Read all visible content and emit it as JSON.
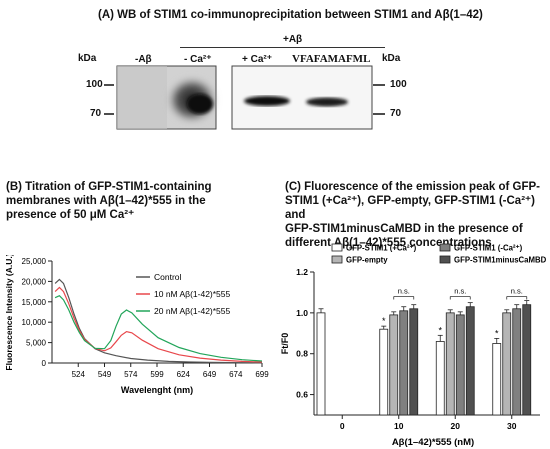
{
  "panelA": {
    "title": "(A) WB of STIM1 co-immunoprecipitation  between STIM1 and Aβ(1–42)",
    "kda_left": "kDa",
    "kda_right": "kDa",
    "minus_ab": "-Aβ",
    "plus_ab": "+Aβ",
    "minus_ca": "- Ca²⁺",
    "plus_ca": "+ Ca²⁺",
    "peptide": "VFAFAMAFML",
    "marker_100": "100",
    "marker_70": "70"
  },
  "panelB": {
    "title_line1": "(B) Titration of GFP-STIM1-containing",
    "title_line2": "membranes with Aβ(1–42)*555 in the",
    "title_line3": "presence of 50 μM Ca²⁺",
    "chart_data": {
      "type": "line",
      "xlabel": "Wavelenght (nm)",
      "ylabel": "Fluorescence Intensity (A.U.)",
      "xlim": [
        499,
        699
      ],
      "ylim": [
        0,
        25000
      ],
      "x_ticks": [
        524,
        549,
        574,
        599,
        624,
        649,
        674,
        699
      ],
      "y_ticks": [
        0,
        5000,
        10000,
        15000,
        20000,
        25000
      ],
      "y_tick_labels": [
        "0",
        "5,000",
        "10,000",
        "15,000",
        "20,000",
        "25,000"
      ],
      "legend": "top-right",
      "series": [
        {
          "name": "Control",
          "color": "#555555",
          "x": [
            502,
            506,
            510,
            515,
            520,
            525,
            530,
            540,
            549,
            560,
            574,
            590,
            610,
            630,
            650,
            670,
            690,
            699
          ],
          "y": [
            19500,
            20500,
            19500,
            16000,
            12000,
            8500,
            6000,
            3500,
            2500,
            1800,
            1100,
            700,
            400,
            250,
            150,
            100,
            80,
            60
          ]
        },
        {
          "name": "10 nM Aβ(1-42)*555",
          "color": "#e8474b",
          "x": [
            502,
            506,
            510,
            515,
            520,
            525,
            530,
            540,
            549,
            555,
            560,
            565,
            570,
            575,
            585,
            600,
            620,
            640,
            660,
            680,
            699
          ],
          "y": [
            17500,
            18500,
            17500,
            14500,
            11000,
            8000,
            5800,
            3600,
            3000,
            3700,
            5200,
            6800,
            7700,
            7400,
            5600,
            3500,
            2000,
            1200,
            700,
            400,
            250
          ]
        },
        {
          "name": "20 nM Aβ(1-42)*555",
          "color": "#22a55a",
          "x": [
            502,
            506,
            510,
            515,
            520,
            525,
            530,
            540,
            549,
            555,
            560,
            565,
            570,
            575,
            585,
            600,
            620,
            640,
            660,
            680,
            699
          ],
          "y": [
            16000,
            16500,
            15500,
            13000,
            10000,
            7500,
            5500,
            3600,
            3500,
            5500,
            9000,
            12000,
            13000,
            12300,
            9500,
            6200,
            3800,
            2300,
            1400,
            800,
            500
          ]
        }
      ]
    }
  },
  "panelC": {
    "title_line1": "(C) Fluorescence of the emission peak of GFP-",
    "title_line2": "STIM1 (+Ca²⁺), GFP-empty, GFP-STIM1 (-Ca²⁺) and",
    "title_line3": "GFP-STIM1minusCaMBD  in  the  presence  of",
    "title_line4": "different Aβ(1–42)*555 concentrations",
    "chart_data": {
      "type": "bar",
      "xlabel": "Aβ(1–42)*555 (nM)",
      "ylabel": "Ft/F0",
      "ylim": [
        0.5,
        1.2
      ],
      "y_ticks": [
        0.6,
        0.8,
        1.0,
        1.2
      ],
      "y_tick_labels": [
        "0.6",
        "0.8",
        "1.0",
        "1.2"
      ],
      "categories": [
        "0",
        "10",
        "20",
        "30"
      ],
      "legend": "top",
      "significance": {
        "star": "*",
        "ns": "n.s."
      },
      "series": [
        {
          "name": "GFP-STIM1 (+Ca²⁺)",
          "color": "#ffffff",
          "values": [
            1.0,
            0.92,
            0.86,
            0.85
          ],
          "errors": [
            0.02,
            0.015,
            0.03,
            0.025
          ],
          "star": [
            false,
            true,
            true,
            true
          ]
        },
        {
          "name": "GFP-empty",
          "color": "#b5b5b5",
          "values": [
            null,
            0.99,
            1.0,
            1.0
          ],
          "errors": [
            0,
            0.015,
            0.015,
            0.015
          ]
        },
        {
          "name": "GFP-STIM1 (-Ca²⁺)",
          "color": "#808080",
          "values": [
            null,
            1.01,
            0.99,
            1.02
          ],
          "errors": [
            0,
            0.02,
            0.015,
            0.02
          ]
        },
        {
          "name": "GFP-STIM1minusCaMBD",
          "color": "#505050",
          "values": [
            null,
            1.02,
            1.03,
            1.04
          ],
          "errors": [
            0,
            0.02,
            0.02,
            0.02
          ]
        }
      ]
    }
  }
}
